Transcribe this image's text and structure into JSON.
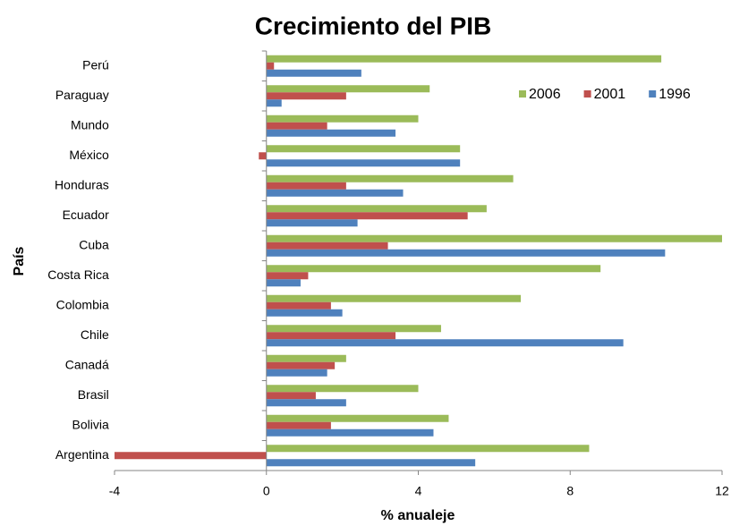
{
  "chart_data": {
    "type": "barh",
    "title": "Crecimiento del PIB",
    "x_label": "% anualeje",
    "y_label": "País",
    "categories": [
      "Argentina",
      "Bolivia",
      "Brasil",
      "Canadá",
      "Chile",
      "Colombia",
      "Costa Rica",
      "Cuba",
      "Ecuador",
      "Honduras",
      "México",
      "Mundo",
      "Paraguay",
      "Perú"
    ],
    "series": [
      {
        "name": "2006",
        "color": "#9bbb59",
        "values": [
          8.5,
          4.8,
          4.0,
          2.1,
          4.6,
          6.7,
          8.8,
          12.1,
          5.8,
          6.5,
          5.1,
          4.0,
          4.3,
          10.4
        ]
      },
      {
        "name": "2001",
        "color": "#c0504d",
        "values": [
          -4.4,
          1.7,
          1.3,
          1.8,
          3.4,
          1.7,
          1.1,
          3.2,
          5.3,
          2.1,
          -0.2,
          1.6,
          2.1,
          0.2
        ]
      },
      {
        "name": "1996",
        "color": "#4f81bd",
        "values": [
          5.5,
          4.4,
          2.1,
          1.6,
          9.4,
          2.0,
          0.9,
          10.5,
          2.4,
          3.6,
          5.1,
          3.4,
          0.4,
          2.5
        ]
      }
    ],
    "xlim": [
      -4,
      12
    ],
    "xticks": [
      -4,
      0,
      4,
      8,
      12
    ],
    "grid": false,
    "legend": "upper right"
  }
}
